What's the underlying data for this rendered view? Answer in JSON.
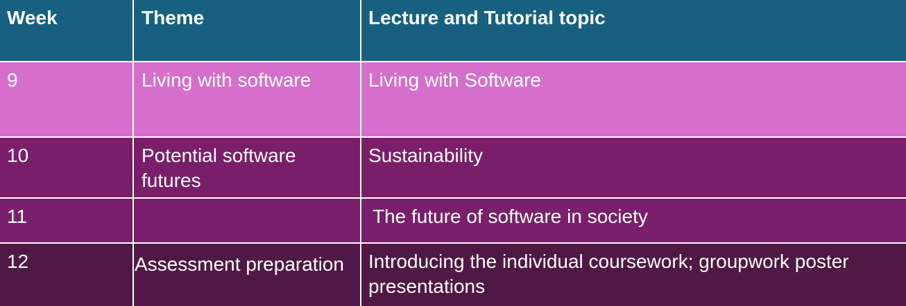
{
  "table": {
    "headers": {
      "week": "Week",
      "theme": "Theme",
      "topic": "Lecture and Tutorial topic"
    },
    "rows": [
      {
        "week": "9",
        "theme": "Living with software",
        "topic": "Living with Software"
      },
      {
        "week": "10",
        "theme": "Potential software futures",
        "topic": "Sustainability"
      },
      {
        "week": "11",
        "theme": "",
        "topic": "The future of software in society"
      },
      {
        "week": "12",
        "theme": "Assessment preparation",
        "topic": "Introducing the individual coursework; groupwork poster presentations"
      }
    ]
  },
  "colors": {
    "header_bg": "#17607f",
    "row_9_bg": "#d66fcb",
    "row_10_bg": "#7b1e6a",
    "row_11_bg": "#7a1f6b",
    "row_12_bg": "#501844",
    "text": "#ffffff",
    "border": "#ffffff"
  }
}
